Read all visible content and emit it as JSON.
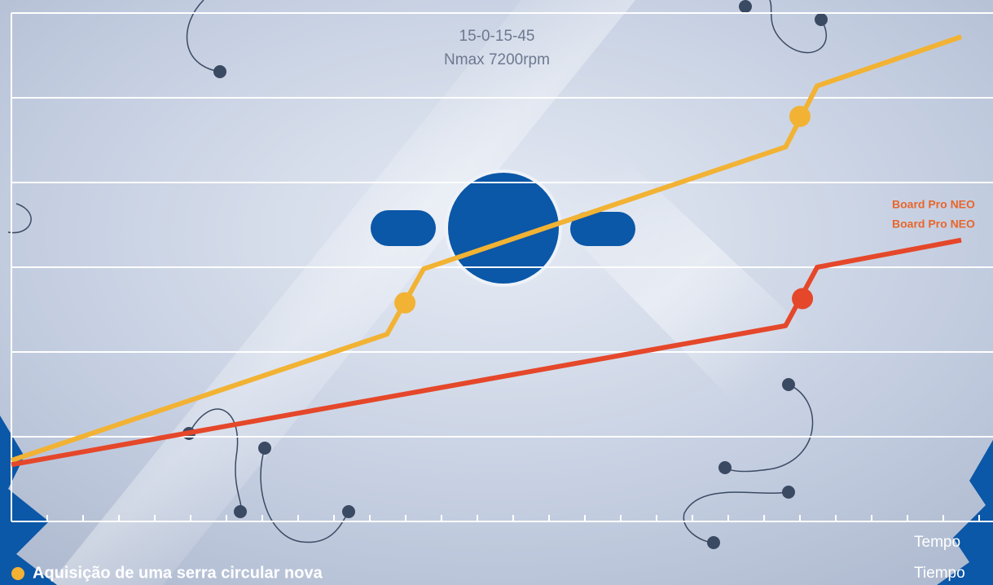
{
  "chart_data": {
    "type": "line",
    "blade_texts": [
      "15-0-15-45",
      "Nmax 7200rpm"
    ],
    "annotations": [
      "Board Pro NEO",
      "Board Pro NEO"
    ],
    "x_labels": [
      "Tempo",
      "Tiempo"
    ],
    "legend_text": "Aquisição de uma serra circular nova",
    "xlim": [
      0,
      27
    ],
    "xticks": [
      0,
      1,
      2,
      3,
      4,
      5,
      6,
      7,
      8,
      9,
      10,
      11,
      12,
      13,
      14,
      15,
      16,
      17,
      18,
      19,
      20,
      21,
      22,
      23,
      24,
      25,
      26,
      27
    ],
    "ylim": [
      0,
      6
    ],
    "yticks": [
      0,
      1,
      2,
      3,
      4,
      5,
      6
    ],
    "grid": true,
    "series": [
      {
        "color": "#f2b233",
        "x": [
          0,
          10.48,
          11.5,
          21.6,
          22.48,
          26.5
        ],
        "values": [
          0.72,
          2.21,
          2.98,
          4.42,
          5.14,
          5.72
        ],
        "markers": {
          "x": [
            10.98,
            22
          ],
          "values": [
            2.58,
            4.78
          ]
        }
      },
      {
        "color": "#e5472a",
        "x": [
          0,
          21.6,
          22.48,
          26.5
        ],
        "values": [
          0.67,
          2.31,
          3.0,
          3.32
        ],
        "markers": {
          "x": [
            22.07
          ],
          "values": [
            2.63
          ]
        }
      }
    ]
  }
}
